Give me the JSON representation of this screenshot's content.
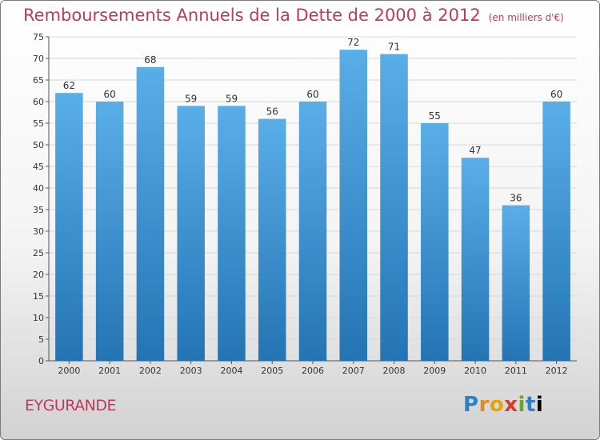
{
  "chart_data": {
    "type": "bar",
    "title": "Remboursements Annuels de la Dette de 2000 à 2012",
    "unit_label": "(en milliers d'€)",
    "categories": [
      "2000",
      "2001",
      "2002",
      "2003",
      "2004",
      "2005",
      "2006",
      "2007",
      "2008",
      "2009",
      "2010",
      "2011",
      "2012"
    ],
    "values": [
      62,
      60,
      68,
      59,
      59,
      56,
      60,
      72,
      71,
      55,
      47,
      36,
      60
    ],
    "ylim": [
      0,
      75
    ],
    "yticks": [
      0,
      5,
      10,
      15,
      20,
      25,
      30,
      35,
      40,
      45,
      50,
      55,
      60,
      65,
      70,
      75
    ],
    "grid": true,
    "data_labels": true,
    "colors": {
      "bar_top": "#5aaee8",
      "bar_bottom": "#2474b4",
      "title": "#c0395a",
      "grid": "#d8d8d8"
    }
  },
  "footer": {
    "place": "EYGURANDE",
    "logo_letters": [
      "P",
      "r",
      "o",
      "x",
      "i",
      "t",
      "i"
    ]
  }
}
